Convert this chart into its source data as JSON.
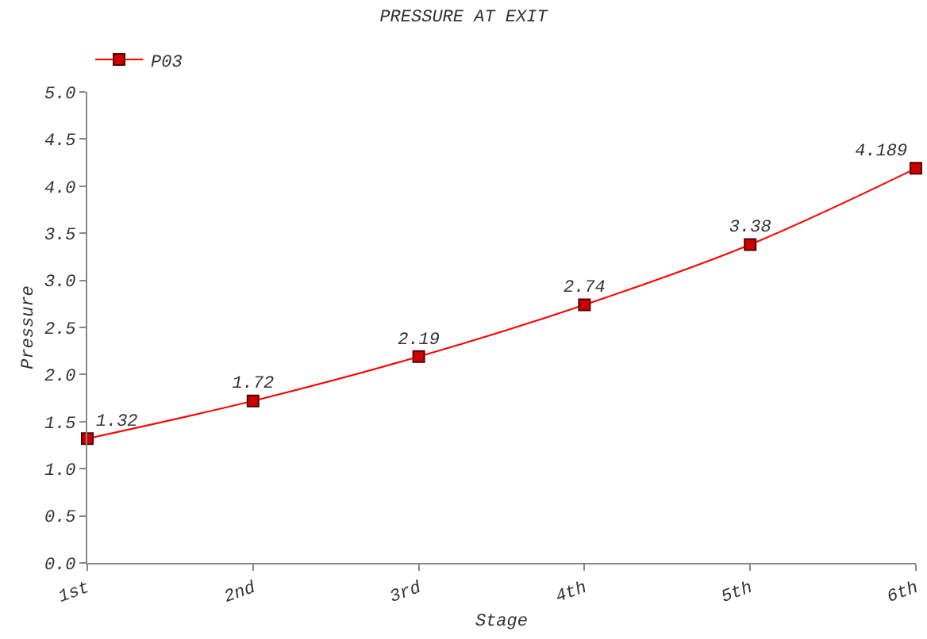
{
  "chart_data": {
    "type": "line",
    "title": "PRESSURE AT EXIT",
    "xlabel": "Stage",
    "ylabel": "Pressure",
    "categories": [
      "1st",
      "2nd",
      "3rd",
      "4th",
      "5th",
      "6th"
    ],
    "series": [
      {
        "name": "P03",
        "color": "#ff0000",
        "values": [
          1.32,
          1.72,
          2.19,
          2.74,
          3.38,
          4.189
        ]
      }
    ],
    "ylim": [
      0,
      5
    ],
    "yticks": [
      {
        "value": 0,
        "label": "0.0"
      },
      {
        "value": 0.5,
        "label": "0.5"
      },
      {
        "value": 1,
        "label": "1.0"
      },
      {
        "value": 1.5,
        "label": "1.5"
      },
      {
        "value": 2,
        "label": "2.0"
      },
      {
        "value": 2.5,
        "label": "2.5"
      },
      {
        "value": 3,
        "label": "3.0"
      },
      {
        "value": 3.5,
        "label": "3.5"
      },
      {
        "value": 4,
        "label": "4.0"
      },
      {
        "value": 4.5,
        "label": "4.5"
      },
      {
        "value": 5,
        "label": "5.0"
      }
    ],
    "data_labels": true,
    "marker": "square",
    "line_style": "solid",
    "legend": "top left"
  }
}
